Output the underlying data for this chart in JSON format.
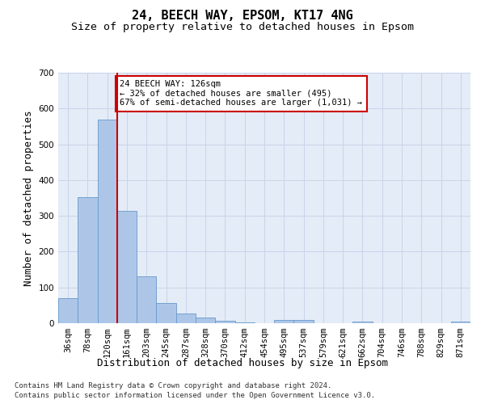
{
  "title": "24, BEECH WAY, EPSOM, KT17 4NG",
  "subtitle": "Size of property relative to detached houses in Epsom",
  "xlabel": "Distribution of detached houses by size in Epsom",
  "ylabel": "Number of detached properties",
  "bar_labels": [
    "36sqm",
    "78sqm",
    "120sqm",
    "161sqm",
    "203sqm",
    "245sqm",
    "287sqm",
    "328sqm",
    "370sqm",
    "412sqm",
    "454sqm",
    "495sqm",
    "537sqm",
    "579sqm",
    "621sqm",
    "662sqm",
    "704sqm",
    "746sqm",
    "788sqm",
    "829sqm",
    "871sqm"
  ],
  "bar_values": [
    70,
    353,
    570,
    313,
    130,
    57,
    27,
    15,
    7,
    3,
    0,
    8,
    10,
    0,
    0,
    5,
    0,
    0,
    0,
    0,
    5
  ],
  "bar_color": "#adc6e8",
  "bar_edge_color": "#6699cc",
  "vline_color": "#cc0000",
  "vline_pos": 2.5,
  "annotation_title": "24 BEECH WAY: 126sqm",
  "annotation_line2": "← 32% of detached houses are smaller (495)",
  "annotation_line3": "67% of semi-detached houses are larger (1,031) →",
  "annotation_box_color": "#cc0000",
  "grid_color": "#c8d4e8",
  "bg_color": "#e4ecf7",
  "ylim": [
    0,
    700
  ],
  "yticks": [
    0,
    100,
    200,
    300,
    400,
    500,
    600,
    700
  ],
  "footer_line1": "Contains HM Land Registry data © Crown copyright and database right 2024.",
  "footer_line2": "Contains public sector information licensed under the Open Government Licence v3.0.",
  "title_fontsize": 11,
  "subtitle_fontsize": 9.5,
  "tick_fontsize": 7.5,
  "ylabel_fontsize": 9,
  "xlabel_fontsize": 9,
  "annotation_fontsize": 7.5,
  "footer_fontsize": 6.5
}
